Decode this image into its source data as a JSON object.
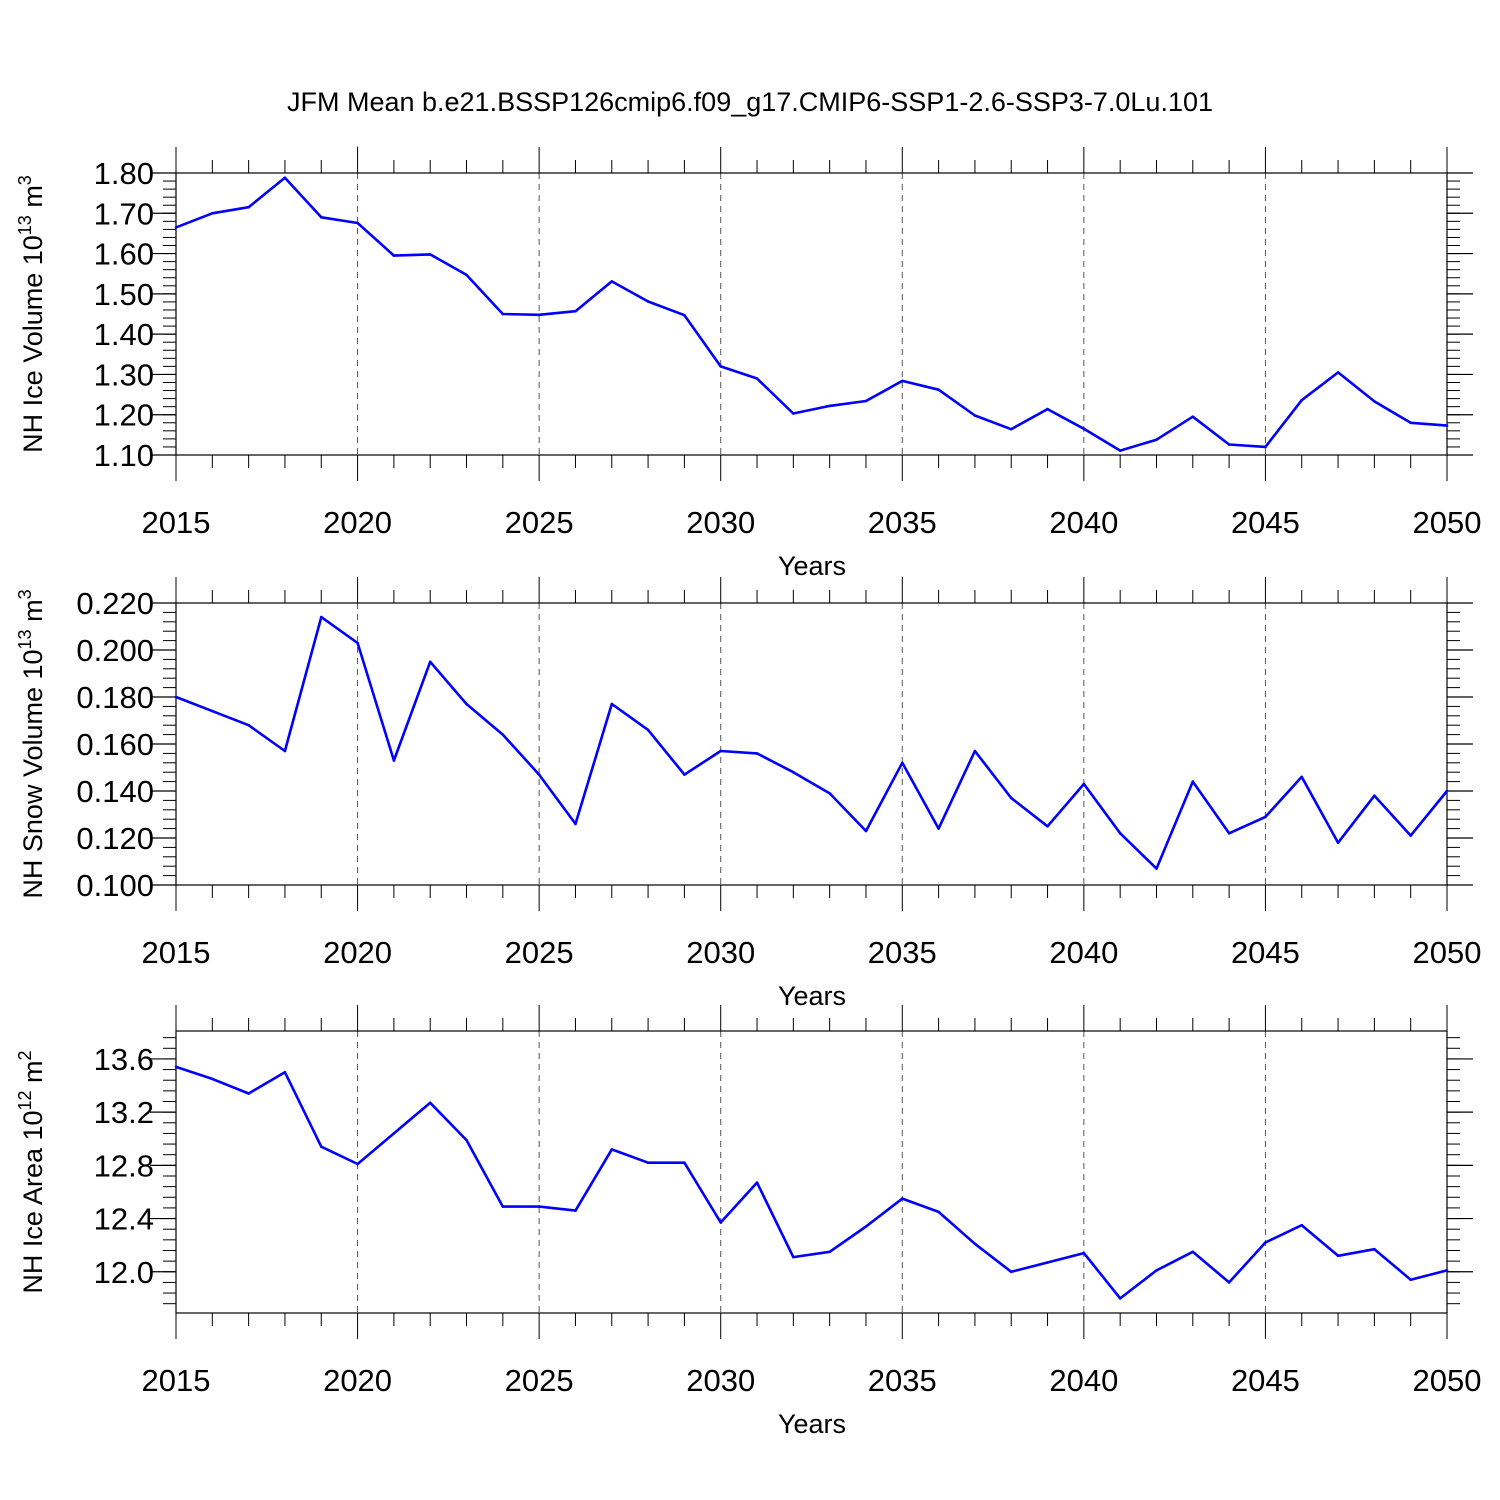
{
  "figure": {
    "title": "JFM Mean b.e21.BSSP126cmip6.f09_g17.CMIP6-SSP1-2.6-SSP3-7.0Lu.101"
  },
  "chart_data": [
    {
      "type": "line",
      "title": "",
      "xlabel": "Years",
      "ylabel": "NH Ice Volume 10",
      "ylabel_unit_exp": "13",
      "ylabel_unit": "m",
      "ylabel_unit_pow": "3",
      "xlim": [
        2015,
        2050
      ],
      "ylim": [
        1.1,
        1.8
      ],
      "yticks": [
        1.1,
        1.2,
        1.3,
        1.4,
        1.5,
        1.6,
        1.7,
        1.8
      ],
      "ytick_labels": [
        "1.10",
        "1.20",
        "1.30",
        "1.40",
        "1.50",
        "1.60",
        "1.70",
        "1.80"
      ],
      "xticks": [
        2015,
        2020,
        2025,
        2030,
        2035,
        2040,
        2045,
        2050
      ],
      "xtick_labels": [
        "2015",
        "2020",
        "2025",
        "2030",
        "2035",
        "2040",
        "2045",
        "2050"
      ],
      "grid": "vertical dashed at major x ticks",
      "series": [
        {
          "color": "#0000ff",
          "x": [
            2015,
            2016,
            2017,
            2018,
            2019,
            2020,
            2021,
            2022,
            2023,
            2024,
            2025,
            2026,
            2027,
            2028,
            2029,
            2030,
            2031,
            2032,
            2033,
            2034,
            2035,
            2036,
            2037,
            2038,
            2039,
            2040,
            2041,
            2042,
            2043,
            2044,
            2045,
            2046,
            2047,
            2048,
            2049,
            2050
          ],
          "y": [
            1.665,
            1.7,
            1.715,
            1.788,
            1.69,
            1.676,
            1.595,
            1.598,
            1.547,
            1.45,
            1.448,
            1.457,
            1.531,
            1.481,
            1.447,
            1.32,
            1.29,
            1.203,
            1.222,
            1.234,
            1.284,
            1.262,
            1.198,
            1.164,
            1.214,
            1.165,
            1.111,
            1.138,
            1.195,
            1.126,
            1.12,
            1.236,
            1.305,
            1.233,
            1.18,
            1.173
          ]
        }
      ]
    },
    {
      "type": "line",
      "title": "",
      "xlabel": "Years",
      "ylabel": "NH Snow Volume 10",
      "ylabel_unit_exp": "13",
      "ylabel_unit": "m",
      "ylabel_unit_pow": "3",
      "xlim": [
        2015,
        2050
      ],
      "ylim": [
        0.1,
        0.22
      ],
      "yticks": [
        0.1,
        0.12,
        0.14,
        0.16,
        0.18,
        0.2,
        0.22
      ],
      "ytick_labels": [
        "0.100",
        "0.120",
        "0.140",
        "0.160",
        "0.180",
        "0.200",
        "0.220"
      ],
      "xticks": [
        2015,
        2020,
        2025,
        2030,
        2035,
        2040,
        2045,
        2050
      ],
      "xtick_labels": [
        "2015",
        "2020",
        "2025",
        "2030",
        "2035",
        "2040",
        "2045",
        "2050"
      ],
      "grid": "vertical dashed at major x ticks",
      "series": [
        {
          "color": "#0000ff",
          "x": [
            2015,
            2016,
            2017,
            2018,
            2019,
            2020,
            2021,
            2022,
            2023,
            2024,
            2025,
            2026,
            2027,
            2028,
            2029,
            2030,
            2031,
            2032,
            2033,
            2034,
            2035,
            2036,
            2037,
            2038,
            2039,
            2040,
            2041,
            2042,
            2043,
            2044,
            2045,
            2046,
            2047,
            2048,
            2049,
            2050
          ],
          "y": [
            0.18,
            0.174,
            0.168,
            0.157,
            0.214,
            0.203,
            0.153,
            0.195,
            0.177,
            0.164,
            0.147,
            0.126,
            0.177,
            0.166,
            0.147,
            0.157,
            0.156,
            0.148,
            0.139,
            0.123,
            0.152,
            0.124,
            0.157,
            0.137,
            0.125,
            0.143,
            0.122,
            0.107,
            0.144,
            0.122,
            0.129,
            0.146,
            0.118,
            0.138,
            0.121,
            0.14
          ]
        }
      ]
    },
    {
      "type": "line",
      "title": "",
      "xlabel": "Years",
      "ylabel": "NH Ice Area 10",
      "ylabel_unit_exp": "12",
      "ylabel_unit": "m",
      "ylabel_unit_pow": "2",
      "xlim": [
        2015,
        2050
      ],
      "ylim": [
        11.69,
        13.81
      ],
      "yticks": [
        12.0,
        12.4,
        12.8,
        13.2,
        13.6
      ],
      "ytick_labels": [
        "12.0",
        "12.4",
        "12.8",
        "13.2",
        "13.6"
      ],
      "xticks": [
        2015,
        2020,
        2025,
        2030,
        2035,
        2040,
        2045,
        2050
      ],
      "xtick_labels": [
        "2015",
        "2020",
        "2025",
        "2030",
        "2035",
        "2040",
        "2045",
        "2050"
      ],
      "grid": "vertical dashed at major x ticks",
      "series": [
        {
          "color": "#0000ff",
          "x": [
            2015,
            2016,
            2017,
            2018,
            2019,
            2020,
            2021,
            2022,
            2023,
            2024,
            2025,
            2026,
            2027,
            2028,
            2029,
            2030,
            2031,
            2032,
            2033,
            2034,
            2035,
            2036,
            2037,
            2038,
            2039,
            2040,
            2041,
            2042,
            2043,
            2044,
            2045,
            2046,
            2047,
            2048,
            2049,
            2050
          ],
          "y": [
            13.54,
            13.45,
            13.34,
            13.5,
            12.94,
            12.81,
            13.04,
            13.27,
            12.99,
            12.49,
            12.49,
            12.46,
            12.92,
            12.82,
            12.82,
            12.37,
            12.67,
            12.11,
            12.15,
            12.34,
            12.55,
            12.45,
            12.21,
            12.0,
            12.07,
            12.14,
            11.8,
            12.01,
            12.15,
            11.92,
            12.22,
            12.35,
            12.12,
            12.17,
            11.94,
            12.01
          ]
        }
      ]
    }
  ]
}
